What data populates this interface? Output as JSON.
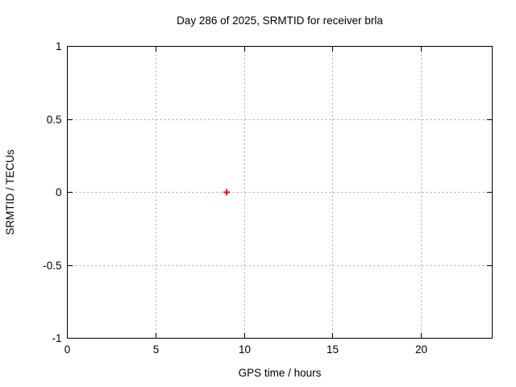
{
  "chart_data": {
    "type": "scatter",
    "title": "Day 286 of 2025, SRMTID for receiver brla",
    "xlabel": "GPS time / hours",
    "ylabel": "SRMTID / TECUs",
    "xlim": [
      0,
      24
    ],
    "ylim": [
      -1,
      1
    ],
    "xticks": [
      {
        "value": 0,
        "label": "0"
      },
      {
        "value": 5,
        "label": "5"
      },
      {
        "value": 10,
        "label": "10"
      },
      {
        "value": 15,
        "label": "15"
      },
      {
        "value": 20,
        "label": "20"
      }
    ],
    "yticks": [
      {
        "value": -1,
        "label": "-1"
      },
      {
        "value": -0.5,
        "label": "-0.5"
      },
      {
        "value": 0,
        "label": "0"
      },
      {
        "value": 0.5,
        "label": "0.5"
      },
      {
        "value": 1,
        "label": "1"
      }
    ],
    "grid": true,
    "legend": "none",
    "colors": {
      "border": "#000000",
      "grid": "#a8a8a8",
      "background": "#ffffff",
      "text": "#000000"
    },
    "series": [
      {
        "name": "SRMTID",
        "marker": "plus",
        "color": "#ff0000",
        "points": [
          {
            "x": 9.0,
            "y": 0.0
          }
        ]
      }
    ]
  }
}
